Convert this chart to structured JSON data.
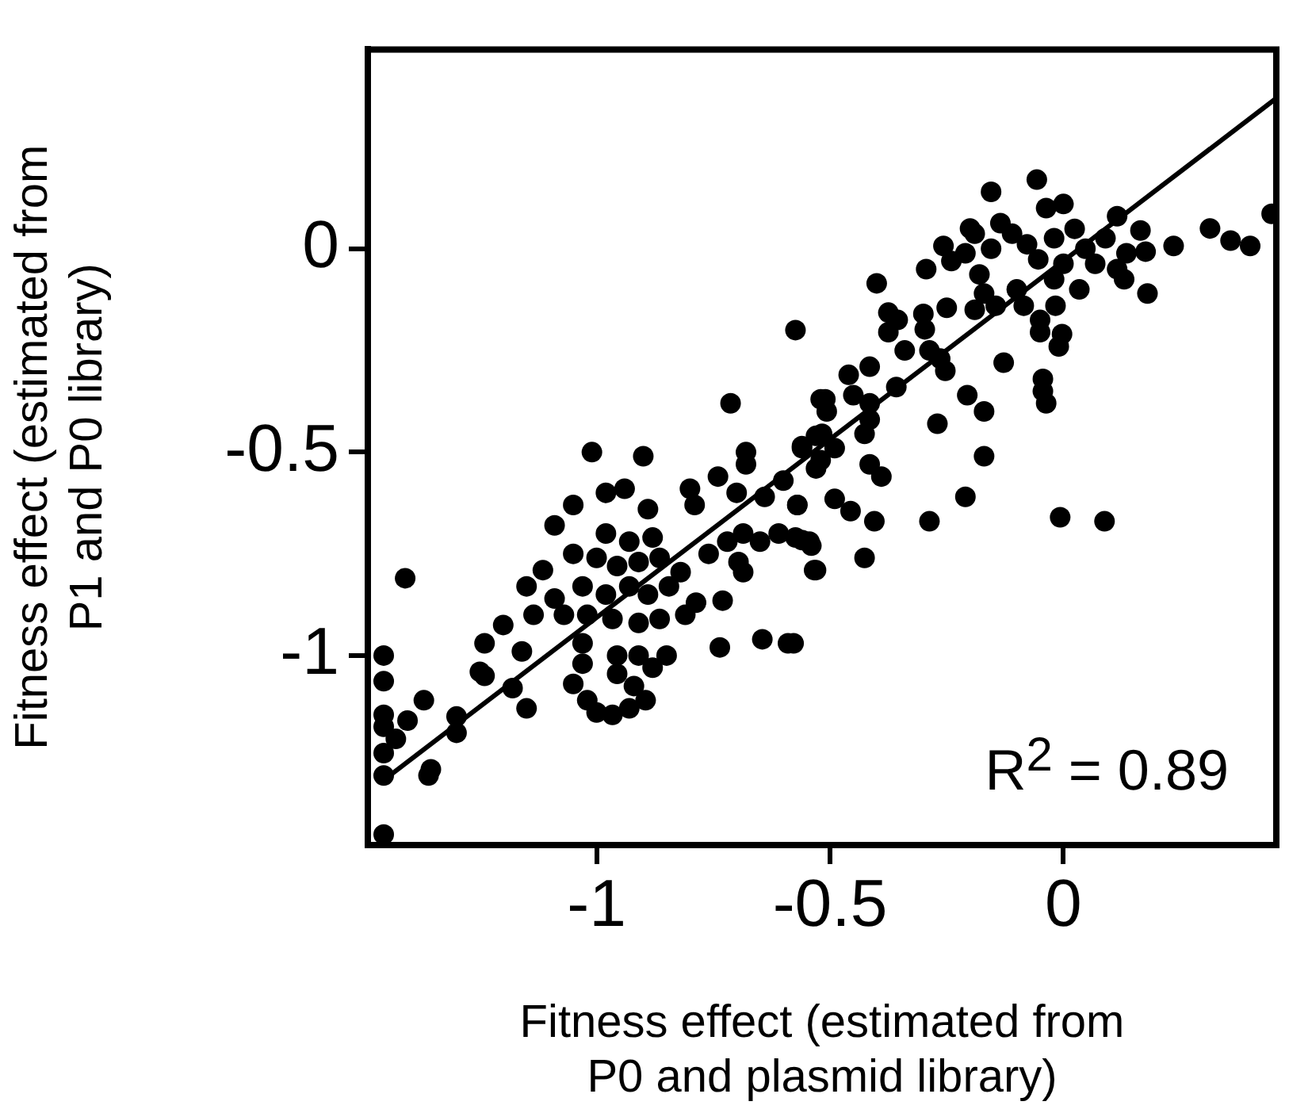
{
  "chart_data": {
    "type": "scatter",
    "xlabel": "Fitness effect (estimated from\nP0 and plasmid library)",
    "ylabel": "Fitness effect (estimated from\nP1 and P0 library)",
    "xlim": [
      -1.49,
      0.456
    ],
    "ylim": [
      -1.466,
      0.49
    ],
    "xticks": [
      -1,
      -0.5,
      0
    ],
    "yticks": [
      -1,
      -0.5,
      0
    ],
    "grid": false,
    "legend": false,
    "annotations": [
      "R$^{2}$ = 0.89"
    ],
    "series": [
      {
        "marker": "circle",
        "color": "#000000",
        "x": [
          -0.574,
          -0.713,
          -1.01,
          -0.9,
          -0.98,
          -0.94,
          -1.05,
          -1.09,
          -0.89,
          -0.8,
          -0.79,
          -0.74,
          -0.68,
          -0.68,
          -0.7,
          -0.56,
          -0.52,
          -0.53,
          -0.53,
          -0.64,
          -0.6,
          -0.57,
          -0.057,
          -0.155,
          -0.037,
          0.0,
          0.115,
          0.446,
          0.314,
          0.358,
          0.4,
          0.236,
          0.18,
          0.165,
          0.176,
          0.13,
          -0.11,
          -0.155,
          -0.078,
          -0.02,
          0.024,
          0.047,
          0.09,
          0.135,
          0.0,
          0.068,
          -0.054,
          -0.19,
          -0.135,
          0.115,
          0.034,
          -0.02,
          -0.2,
          -0.257,
          -0.24,
          -0.21,
          -0.294,
          -0.4,
          -0.18,
          -0.17,
          -0.19,
          -0.145,
          -0.1,
          -0.085,
          -0.017,
          -0.05,
          -0.05,
          -0.003,
          -0.01,
          -0.25,
          -0.375,
          -0.355,
          -0.375,
          -0.3,
          -0.297,
          -0.34,
          -0.287,
          -0.264,
          -0.253,
          -0.128,
          -0.044,
          -0.044,
          -0.037,
          -0.415,
          -0.46,
          -0.358,
          -0.45,
          -0.415,
          -0.206,
          -0.17,
          -0.27,
          -0.51,
          -0.507,
          -0.426,
          -0.415,
          -0.517,
          -0.49,
          -0.56,
          -0.52,
          -0.17,
          -0.415,
          -0.39,
          -0.57,
          -0.49,
          -0.456,
          -0.405,
          -0.21,
          -0.287,
          -0.007,
          0.088,
          -0.426,
          -0.53,
          -0.574,
          -0.544,
          -0.578,
          -1.41,
          -1.05,
          -1.115,
          -1.15,
          -1.135,
          -1.2,
          -1.24,
          -1.16,
          -1.25,
          -1.24,
          -1.18,
          -1.15,
          -1.37,
          -1.405,
          -1.3,
          -1.3,
          -1.456,
          -1.456,
          -1.456,
          -1.456,
          -1.456,
          -1.456,
          -1.456,
          -1.43,
          -1.36,
          -1.355,
          -0.98,
          -0.93,
          -0.88,
          -1.0,
          -0.956,
          -0.91,
          -0.865,
          -0.82,
          -0.98,
          -0.93,
          -0.89,
          -0.845,
          -1.02,
          -0.966,
          -0.91,
          -0.865,
          -0.81,
          -0.787,
          -1.03,
          -1.07,
          -1.09,
          -1.03,
          -1.03,
          -1.05,
          -1.02,
          -1.0,
          -0.966,
          -0.93,
          -0.895,
          -0.956,
          -0.91,
          -0.956,
          -0.92,
          -0.88,
          -0.85,
          -0.73,
          -0.736,
          -0.645,
          -0.59,
          -0.76,
          -0.72,
          -0.686,
          -0.696,
          -0.686,
          -0.65,
          -0.61,
          -0.56,
          -0.534,
          -0.54
        ],
        "values": [
          -0.2,
          -0.38,
          -0.5,
          -0.51,
          -0.6,
          -0.59,
          -0.63,
          -0.68,
          -0.64,
          -0.59,
          -0.63,
          -0.56,
          -0.5,
          -0.53,
          -0.6,
          -0.49,
          -0.37,
          -0.46,
          -0.54,
          -0.61,
          -0.57,
          -0.63,
          0.17,
          0.14,
          0.1,
          0.11,
          0.08,
          0.086,
          0.05,
          0.02,
          0.007,
          0.007,
          -0.11,
          0.045,
          -0.007,
          -0.075,
          0.037,
          0.0,
          0.011,
          0.026,
          0.049,
          0.0,
          0.026,
          -0.011,
          -0.037,
          -0.037,
          -0.026,
          0.037,
          0.063,
          -0.05,
          -0.1,
          -0.075,
          0.05,
          0.007,
          -0.03,
          -0.011,
          -0.05,
          -0.085,
          -0.063,
          -0.11,
          -0.15,
          -0.14,
          -0.1,
          -0.14,
          -0.14,
          -0.175,
          -0.205,
          -0.21,
          -0.24,
          -0.145,
          -0.157,
          -0.175,
          -0.205,
          -0.16,
          -0.198,
          -0.25,
          -0.25,
          -0.27,
          -0.3,
          -0.28,
          -0.32,
          -0.35,
          -0.38,
          -0.29,
          -0.31,
          -0.34,
          -0.36,
          -0.38,
          -0.36,
          -0.4,
          -0.43,
          -0.37,
          -0.4,
          -0.455,
          -0.42,
          -0.455,
          -0.49,
          -0.485,
          -0.52,
          -0.51,
          -0.53,
          -0.56,
          -0.63,
          -0.615,
          -0.645,
          -0.67,
          -0.61,
          -0.67,
          -0.66,
          -0.67,
          -0.76,
          -0.79,
          -0.71,
          -0.72,
          -0.97,
          -0.81,
          -0.75,
          -0.79,
          -0.83,
          -0.9,
          -0.925,
          -0.97,
          -0.99,
          -1.04,
          -1.05,
          -1.08,
          -1.13,
          -1.11,
          -1.16,
          -1.15,
          -1.19,
          -1.0,
          -1.063,
          -1.146,
          -1.175,
          -1.24,
          -1.295,
          -1.44,
          -1.205,
          -1.295,
          -1.28,
          -0.7,
          -0.72,
          -0.71,
          -0.76,
          -0.78,
          -0.77,
          -0.76,
          -0.795,
          -0.85,
          -0.83,
          -0.85,
          -0.83,
          -0.9,
          -0.91,
          -0.92,
          -0.91,
          -0.9,
          -0.87,
          -0.83,
          -0.9,
          -0.86,
          -0.97,
          -1.02,
          -1.07,
          -1.11,
          -1.14,
          -1.146,
          -1.13,
          -1.11,
          -1.0,
          -1.0,
          -1.045,
          -1.075,
          -1.03,
          -1.0,
          -0.865,
          -0.98,
          -0.96,
          -0.97,
          -0.75,
          -0.72,
          -0.7,
          -0.77,
          -0.795,
          -0.72,
          -0.7,
          -0.716,
          -0.79,
          -0.73
        ]
      },
      {
        "type": "line",
        "marker": "none",
        "color": "#000000",
        "x": [
          -1.46,
          0.456
        ],
        "values": [
          -1.31,
          0.37
        ]
      }
    ]
  }
}
